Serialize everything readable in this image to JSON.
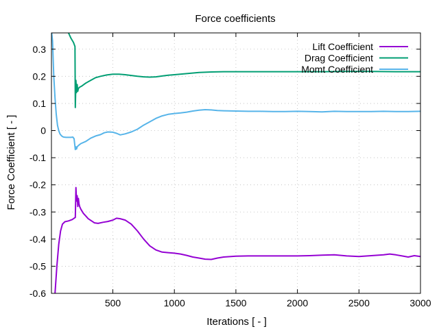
{
  "chart_data": {
    "type": "line",
    "title": "Force coefficients",
    "xlabel": "Iterations [ - ]",
    "ylabel": "Force Coefficient [ - ]",
    "xlim": [
      1,
      3000
    ],
    "ylim": [
      -0.6,
      0.36
    ],
    "grid": true,
    "legend_position": "top-right",
    "x_ticks": [
      500,
      1000,
      1500,
      2000,
      2500,
      3000
    ],
    "x_tick_labels": [
      "500",
      "1000",
      "1500",
      "2000",
      "2500",
      "3000"
    ],
    "y_ticks": [
      -0.6,
      -0.5,
      -0.4,
      -0.3,
      -0.2,
      -0.1,
      0,
      0.1,
      0.2,
      0.3
    ],
    "y_tick_labels": [
      "-0.6",
      "-0.5",
      "-0.4",
      "-0.3",
      "-0.2",
      "-0.1",
      "0",
      "0.1",
      "0.2",
      "0.3"
    ],
    "series": [
      {
        "name": "Lift Coefficient",
        "color": "#9400d3",
        "x": [
          30,
          45,
          60,
          75,
          90,
          110,
          140,
          170,
          195,
          200,
          205,
          210,
          215,
          220,
          225,
          230,
          240,
          260,
          300,
          350,
          380,
          420,
          460,
          500,
          530,
          560,
          600,
          650,
          700,
          750,
          800,
          850,
          900,
          950,
          1000,
          1050,
          1100,
          1150,
          1200,
          1250,
          1300,
          1350,
          1400,
          1500,
          1600,
          1700,
          1800,
          1900,
          2000,
          2100,
          2200,
          2300,
          2400,
          2500,
          2600,
          2700,
          2750,
          2800,
          2850,
          2900,
          2950,
          3000
        ],
        "values": [
          -0.6,
          -0.5,
          -0.42,
          -0.37,
          -0.345,
          -0.336,
          -0.333,
          -0.328,
          -0.32,
          -0.21,
          -0.26,
          -0.24,
          -0.28,
          -0.25,
          -0.27,
          -0.28,
          -0.29,
          -0.305,
          -0.325,
          -0.34,
          -0.342,
          -0.338,
          -0.335,
          -0.33,
          -0.323,
          -0.325,
          -0.33,
          -0.345,
          -0.37,
          -0.4,
          -0.425,
          -0.44,
          -0.448,
          -0.45,
          -0.452,
          -0.455,
          -0.46,
          -0.466,
          -0.47,
          -0.474,
          -0.475,
          -0.47,
          -0.466,
          -0.463,
          -0.462,
          -0.462,
          -0.462,
          -0.462,
          -0.462,
          -0.461,
          -0.459,
          -0.458,
          -0.462,
          -0.464,
          -0.461,
          -0.458,
          -0.455,
          -0.458,
          -0.462,
          -0.466,
          -0.461,
          -0.464
        ]
      },
      {
        "name": "Drag Coefficient",
        "color": "#009e73",
        "x": [
          140,
          160,
          180,
          192,
          195,
          200,
          205,
          210,
          215,
          220,
          230,
          250,
          280,
          320,
          360,
          400,
          450,
          500,
          550,
          600,
          650,
          700,
          750,
          800,
          850,
          900,
          950,
          1000,
          1100,
          1200,
          1300,
          1400,
          1500,
          1600,
          1700,
          1800,
          1900,
          2000,
          2200,
          2400,
          2600,
          2800,
          3000
        ],
        "values": [
          0.36,
          0.34,
          0.325,
          0.31,
          0.085,
          0.185,
          0.14,
          0.17,
          0.145,
          0.155,
          0.16,
          0.165,
          0.175,
          0.185,
          0.195,
          0.2,
          0.205,
          0.208,
          0.208,
          0.206,
          0.203,
          0.2,
          0.198,
          0.197,
          0.198,
          0.201,
          0.204,
          0.206,
          0.21,
          0.214,
          0.216,
          0.217,
          0.217,
          0.217,
          0.217,
          0.217,
          0.217,
          0.217,
          0.217,
          0.218,
          0.218,
          0.217,
          0.217
        ]
      },
      {
        "name": "Momt Coefficient",
        "color": "#56b4e9",
        "x": [
          3,
          10,
          20,
          30,
          40,
          50,
          60,
          70,
          80,
          90,
          100,
          120,
          140,
          160,
          175,
          185,
          195,
          200,
          205,
          210,
          220,
          240,
          280,
          320,
          360,
          400,
          430,
          460,
          500,
          530,
          560,
          600,
          650,
          700,
          750,
          800,
          850,
          900,
          950,
          1000,
          1050,
          1100,
          1150,
          1200,
          1250,
          1300,
          1350,
          1400,
          1500,
          1600,
          1700,
          1800,
          1900,
          2000,
          2100,
          2200,
          2300,
          2400,
          2500,
          2600,
          2700,
          2800,
          2900,
          3000
        ],
        "values": [
          0.36,
          0.33,
          0.2,
          0.12,
          0.06,
          0.02,
          0.0,
          -0.012,
          -0.018,
          -0.022,
          -0.024,
          -0.025,
          -0.025,
          -0.025,
          -0.024,
          -0.03,
          -0.07,
          -0.06,
          -0.068,
          -0.06,
          -0.055,
          -0.048,
          -0.04,
          -0.028,
          -0.02,
          -0.015,
          -0.008,
          -0.005,
          -0.006,
          -0.01,
          -0.016,
          -0.012,
          -0.005,
          0.005,
          0.02,
          0.032,
          0.045,
          0.054,
          0.06,
          0.063,
          0.065,
          0.068,
          0.072,
          0.075,
          0.077,
          0.076,
          0.074,
          0.073,
          0.072,
          0.071,
          0.071,
          0.07,
          0.07,
          0.071,
          0.07,
          0.069,
          0.071,
          0.07,
          0.07,
          0.07,
          0.071,
          0.07,
          0.07,
          0.071
        ]
      }
    ]
  }
}
